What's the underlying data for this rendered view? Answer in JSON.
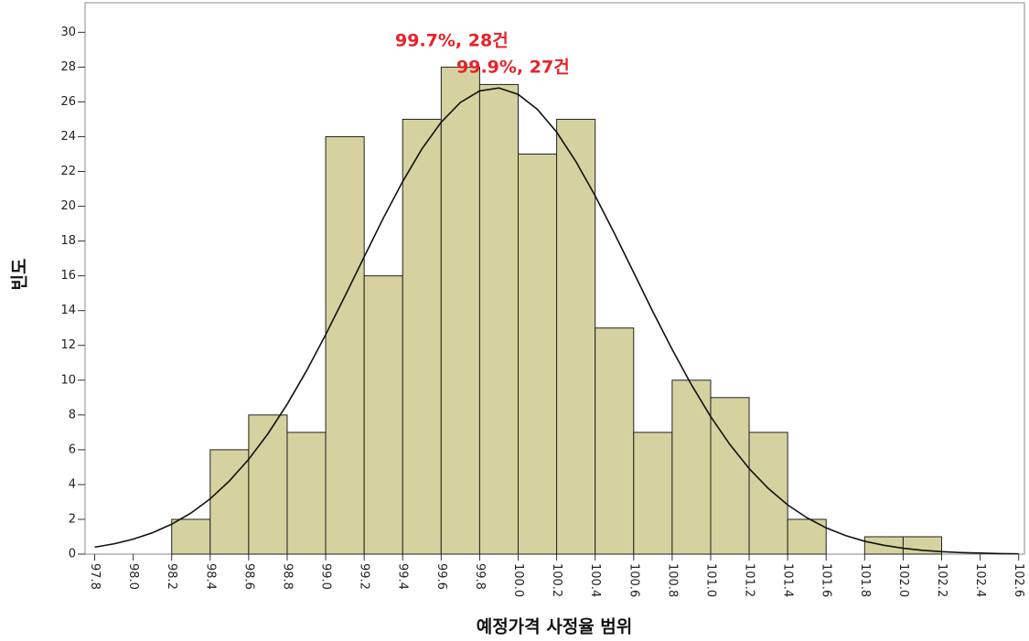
{
  "chart_data": {
    "type": "histogram",
    "xlabel": "예정가격 사정율 범위",
    "ylabel": "빈도",
    "bins": [
      98.2,
      98.4,
      98.6,
      98.8,
      99.0,
      99.2,
      99.4,
      99.6,
      99.8,
      100.0,
      100.2,
      100.4,
      100.6,
      100.8,
      101.0,
      101.2,
      101.4,
      101.6,
      101.8,
      102.0,
      102.2
    ],
    "counts": [
      2,
      6,
      8,
      7,
      24,
      16,
      25,
      28,
      27,
      23,
      25,
      13,
      7,
      10,
      9,
      7,
      2,
      0,
      1,
      1
    ],
    "color": "#d6d2a0",
    "curve": {
      "x": [
        97.8,
        97.9,
        98.0,
        98.1,
        98.2,
        98.3,
        98.4,
        98.5,
        98.6,
        98.7,
        98.8,
        98.9,
        99.0,
        99.1,
        99.2,
        99.3,
        99.4,
        99.5,
        99.6,
        99.7,
        99.8,
        99.9,
        100.0,
        100.1,
        100.2,
        100.3,
        100.4,
        100.5,
        100.6,
        100.7,
        100.8,
        100.9,
        101.0,
        101.1,
        101.2,
        101.3,
        101.4,
        101.5,
        101.6,
        101.7,
        101.8,
        101.9,
        102.0,
        102.1,
        102.2,
        102.3,
        102.4,
        102.5,
        102.6
      ],
      "values": [
        0.4,
        0.59,
        0.86,
        1.23,
        1.72,
        2.36,
        3.18,
        4.21,
        5.45,
        6.92,
        8.62,
        10.53,
        12.62,
        14.83,
        17.09,
        19.33,
        21.42,
        23.3,
        24.83,
        25.97,
        26.63,
        26.8,
        26.43,
        25.57,
        24.26,
        22.57,
        20.6,
        18.44,
        16.19,
        13.93,
        11.77,
        9.74,
        7.91,
        6.3,
        4.92,
        3.77,
        2.83,
        2.09,
        1.51,
        1.07,
        0.74,
        0.51,
        0.34,
        0.22,
        0.14,
        0.09,
        0.06,
        0.03,
        0.02
      ],
      "color": "#111111"
    },
    "annotations": [
      "99.7%, 28건",
      "99.9%, 27건"
    ],
    "xlim": [
      97.75,
      102.63
    ],
    "ylim": [
      0,
      31.7
    ],
    "xticks": [
      {
        "value": 97.8,
        "label": "97.8"
      },
      {
        "value": 98.0,
        "label": "98.0"
      },
      {
        "value": 98.2,
        "label": "98.2"
      },
      {
        "value": 98.4,
        "label": "98.4"
      },
      {
        "value": 98.6,
        "label": "98.6"
      },
      {
        "value": 98.8,
        "label": "98.8"
      },
      {
        "value": 99.0,
        "label": "99.0"
      },
      {
        "value": 99.2,
        "label": "99.2"
      },
      {
        "value": 99.4,
        "label": "99.4"
      },
      {
        "value": 99.6,
        "label": "99.6"
      },
      {
        "value": 99.8,
        "label": "99.8"
      },
      {
        "value": 100.0,
        "label": "100.0"
      },
      {
        "value": 100.2,
        "label": "100.2"
      },
      {
        "value": 100.4,
        "label": "100.4"
      },
      {
        "value": 100.6,
        "label": "100.6"
      },
      {
        "value": 100.8,
        "label": "100.8"
      },
      {
        "value": 101.0,
        "label": "101.0"
      },
      {
        "value": 101.2,
        "label": "101.2"
      },
      {
        "value": 101.4,
        "label": "101.4"
      },
      {
        "value": 101.6,
        "label": "101.6"
      },
      {
        "value": 101.8,
        "label": "101.8"
      },
      {
        "value": 102.0,
        "label": "102.0"
      },
      {
        "value": 102.2,
        "label": "102.2"
      },
      {
        "value": 102.4,
        "label": "102.4"
      },
      {
        "value": 102.6,
        "label": "102.6"
      }
    ],
    "yticks": [
      0,
      2,
      4,
      6,
      8,
      10,
      12,
      14,
      16,
      18,
      20,
      22,
      24,
      26,
      28,
      30
    ]
  }
}
